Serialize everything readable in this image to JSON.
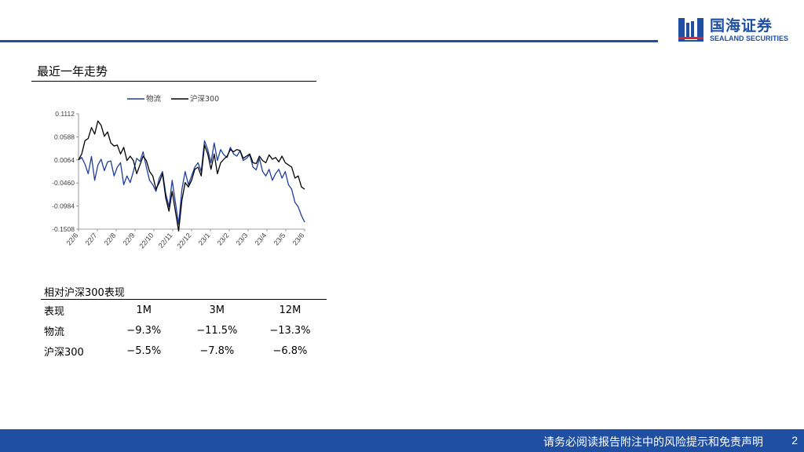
{
  "brand": {
    "name_cn": "国海证券",
    "name_en": "SEALAND SECURITIES",
    "color": "#1f4fa3"
  },
  "section_title": "最近一年走势",
  "chart_data": {
    "type": "line",
    "title": "",
    "xlabel": "",
    "ylabel": "",
    "legend_position": "top",
    "y_ticks": [
      "0.1112",
      "0.0588",
      "0.0064",
      "-0.0460",
      "-0.0984",
      "-0.1508"
    ],
    "ylim": [
      -0.1508,
      0.1112
    ],
    "x_ticks": [
      "22/6",
      "22/7",
      "22/8",
      "22/9",
      "22/10",
      "22/11",
      "22/12",
      "23/1",
      "23/2",
      "23/3",
      "23/4",
      "23/5",
      "23/6"
    ],
    "grid": false,
    "series": [
      {
        "name": "物流",
        "color": "#1f3d9c",
        "values": [
          0.0064,
          0.012,
          -0.003,
          -0.025,
          0.014,
          -0.04,
          -0.005,
          0.008,
          -0.018,
          0.002,
          0.004,
          -0.03,
          -0.01,
          0.0,
          -0.05,
          -0.03,
          -0.045,
          -0.02,
          0.01,
          0.003,
          0.025,
          -0.01,
          -0.04,
          -0.05,
          -0.065,
          -0.035,
          -0.02,
          -0.07,
          -0.1,
          -0.04,
          -0.09,
          -0.14,
          -0.06,
          -0.02,
          -0.05,
          -0.03,
          -0.01,
          0.0,
          -0.02,
          0.05,
          0.03,
          0.0,
          0.045,
          0.005,
          0.03,
          0.018,
          0.012,
          0.035,
          0.02,
          0.015,
          0.027,
          0.005,
          0.01,
          0.018,
          -0.01,
          -0.016,
          0.01,
          -0.02,
          -0.03,
          -0.015,
          -0.04,
          -0.025,
          -0.015,
          -0.035,
          -0.02,
          -0.05,
          -0.06,
          -0.09,
          -0.1,
          -0.12,
          -0.135
        ]
      },
      {
        "name": "沪深300",
        "color": "#000000",
        "values": [
          0.0064,
          0.02,
          0.05,
          0.055,
          0.08,
          0.065,
          0.095,
          0.085,
          0.06,
          0.07,
          0.045,
          0.038,
          0.04,
          0.02,
          0.035,
          0.005,
          0.015,
          0.005,
          -0.025,
          -0.005,
          0.015,
          0.005,
          -0.02,
          -0.03,
          -0.06,
          -0.045,
          -0.025,
          -0.08,
          -0.11,
          -0.065,
          -0.11,
          -0.155,
          -0.085,
          -0.045,
          -0.055,
          -0.04,
          -0.015,
          -0.01,
          -0.03,
          0.04,
          0.02,
          -0.015,
          0.02,
          -0.025,
          0.0,
          0.008,
          0.015,
          0.03,
          0.025,
          0.03,
          0.028,
          0.01,
          0.015,
          0.02,
          0.0,
          -0.002,
          0.015,
          0.005,
          0.0,
          0.018,
          0.008,
          0.012,
          0.002,
          0.015,
          0.0,
          -0.005,
          -0.01,
          -0.035,
          -0.03,
          -0.055,
          -0.06
        ]
      }
    ]
  },
  "perf_table": {
    "title": "相对沪深300表现",
    "headers": [
      "表现",
      "1M",
      "3M",
      "12M"
    ],
    "rows": [
      [
        "物流",
        "−9.3%",
        "−11.5%",
        "−13.3%"
      ],
      [
        "沪深300",
        "−5.5%",
        "−7.8%",
        "−6.8%"
      ]
    ]
  },
  "footer": {
    "disclaimer": "请务必阅读报告附注中的风险提示和免责声明",
    "page_number": "2"
  }
}
